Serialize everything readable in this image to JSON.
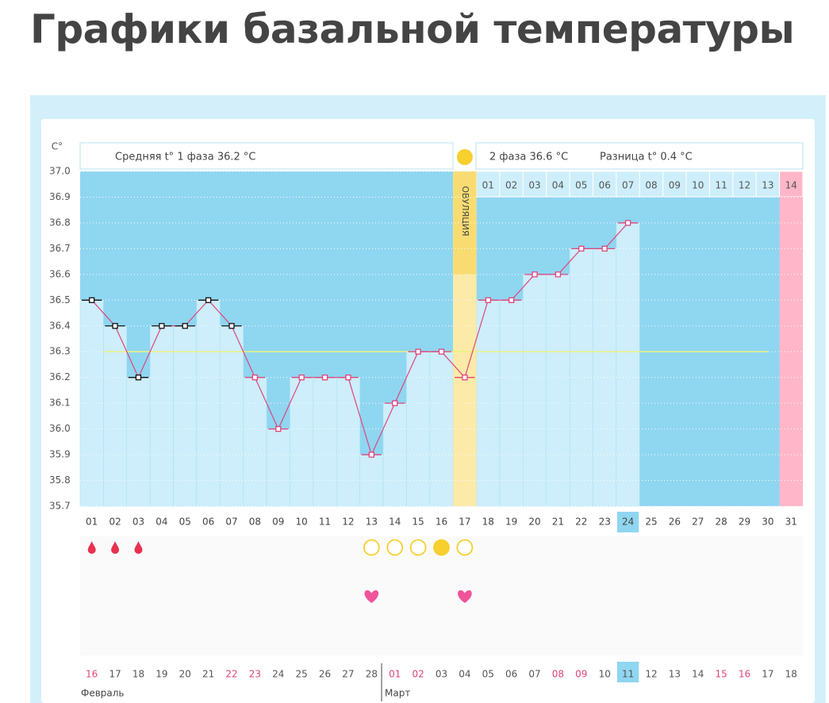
{
  "chart_data": {
    "type": "line",
    "title": "Графики базальной температуры",
    "unit": "C°",
    "phase1_text": "Средняя t° 1 фаза 36.2 °C",
    "phase2_text": "2 фаза 36.6 °C",
    "difference_text": "Разница t° 0.4 °C",
    "ovulation_label": "ОВУЛЯЦИЯ",
    "ovulation_day": "17",
    "ylim": [
      35.7,
      37.0
    ],
    "yticks": [
      {
        "value": 37.0,
        "label": "37.0"
      },
      36.9,
      36.8,
      36.7,
      36.6,
      36.5,
      36.4,
      36.3,
      36.2,
      36.1,
      {
        "value": 36.0,
        "label": "36.0"
      },
      35.9,
      35.8,
      35.7
    ],
    "grid": true,
    "categories": [
      "01",
      "02",
      "03",
      "04",
      "05",
      "06",
      "07",
      "08",
      "09",
      "10",
      "11",
      "12",
      "13",
      "14",
      "15",
      "16",
      "17",
      "18",
      "19",
      "20",
      "21",
      "22",
      "23",
      "24",
      "25",
      "26",
      "27",
      "28",
      "29",
      "30",
      "31"
    ],
    "values": [
      36.5,
      36.4,
      36.2,
      36.4,
      36.4,
      36.5,
      36.4,
      36.2,
      36.0,
      36.2,
      36.2,
      36.2,
      35.9,
      36.1,
      36.3,
      36.3,
      36.2,
      36.5,
      36.5,
      36.6,
      36.6,
      36.7,
      36.7,
      36.8,
      null,
      null,
      null,
      null,
      null,
      null,
      null
    ],
    "color": "#e0457b",
    "marker_colors": [
      "#111",
      "#111",
      "#111",
      "#111",
      "#111",
      "#111",
      "#111",
      "#e0457b",
      "#e0457b",
      "#e0457b",
      "#e0457b",
      "#e0457b",
      "#e0457b",
      "#e0457b",
      "#e0457b",
      "#e0457b",
      "#e0457b",
      "#e0457b",
      "#e0457b",
      "#e0457b",
      "#e0457b",
      "#e0457b",
      "#e0457b",
      "#e0457b",
      null,
      null,
      null,
      null,
      null,
      null,
      null
    ],
    "cover_line": 36.3,
    "current_day": "24",
    "phase2_days": [
      "01",
      "02",
      "03",
      "04",
      "05",
      "06",
      "07",
      "08",
      "09",
      "10",
      "11",
      "12",
      "13",
      "14"
    ],
    "dates": [
      "16",
      "17",
      "18",
      "19",
      "20",
      "21",
      "22",
      "23",
      "24",
      "25",
      "26",
      "27",
      "28",
      "01",
      "02",
      "03",
      "04",
      "05",
      "06",
      "07",
      "08",
      "09",
      "10",
      "11",
      "12",
      "13",
      "14",
      "15",
      "16",
      "17",
      "18"
    ],
    "date_colors": [
      "#e0457b",
      "#555",
      "#555",
      "#555",
      "#555",
      "#555",
      "#e0457b",
      "#e0457b",
      "#555",
      "#555",
      "#555",
      "#555",
      "#555",
      "#e0457b",
      "#e0457b",
      "#555",
      "#555",
      "#555",
      "#555",
      "#555",
      "#e0457b",
      "#e0457b",
      "#555",
      "#555",
      "#555",
      "#555",
      "#555",
      "#e0457b",
      "#e0457b",
      "#555",
      "#555"
    ],
    "months": [
      "Февраль",
      "Март"
    ],
    "symbols": {
      "drops": [
        "01",
        "02",
        "03"
      ],
      "circles": [
        "13",
        "14",
        "15",
        "16",
        "17"
      ],
      "filled_circles": [
        "16"
      ],
      "hearts": [
        "13",
        "17"
      ]
    }
  }
}
